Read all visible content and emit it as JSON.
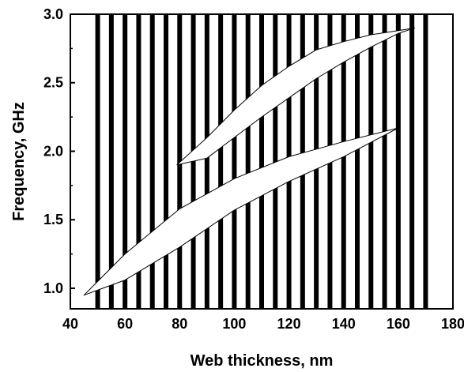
{
  "chart_data": {
    "type": "area",
    "xlabel": "Web thickness, nm",
    "ylabel": "Frequency, GHz",
    "xlim": [
      40,
      180
    ],
    "ylim": [
      0.85,
      3.0
    ],
    "x_ticks": [
      "40",
      "60",
      "80",
      "100",
      "120",
      "140",
      "160",
      "180"
    ],
    "y_ticks": [
      "1.0",
      "1.5",
      "2.0",
      "2.5",
      "3.0"
    ],
    "grid": false,
    "stripes": {
      "x": [
        50,
        55,
        60,
        65,
        70,
        75,
        80,
        85,
        90,
        95,
        100,
        105,
        110,
        115,
        120,
        125,
        130,
        135,
        140,
        145,
        150,
        155,
        160,
        165,
        170
      ],
      "color": "#000000"
    },
    "series": [
      {
        "upper": {
          "x": [
            45,
            60,
            80,
            100,
            120,
            140,
            160
          ],
          "y": [
            0.95,
            1.25,
            1.58,
            1.8,
            1.96,
            2.07,
            2.17
          ]
        },
        "lower": {
          "x": [
            45,
            60,
            80,
            100,
            120,
            140,
            160
          ],
          "y": [
            0.95,
            1.06,
            1.3,
            1.57,
            1.78,
            1.96,
            2.17
          ]
        }
      },
      {
        "upper": {
          "x": [
            79,
            90,
            100,
            110,
            120,
            130,
            140,
            150,
            160,
            166
          ],
          "y": [
            1.9,
            2.1,
            2.3,
            2.48,
            2.62,
            2.74,
            2.8,
            2.85,
            2.88,
            2.9
          ]
        },
        "lower": {
          "x": [
            79,
            90,
            100,
            110,
            120,
            130,
            140,
            150,
            160,
            166
          ],
          "y": [
            1.9,
            1.95,
            2.1,
            2.25,
            2.39,
            2.53,
            2.65,
            2.76,
            2.86,
            2.9
          ]
        }
      }
    ]
  }
}
